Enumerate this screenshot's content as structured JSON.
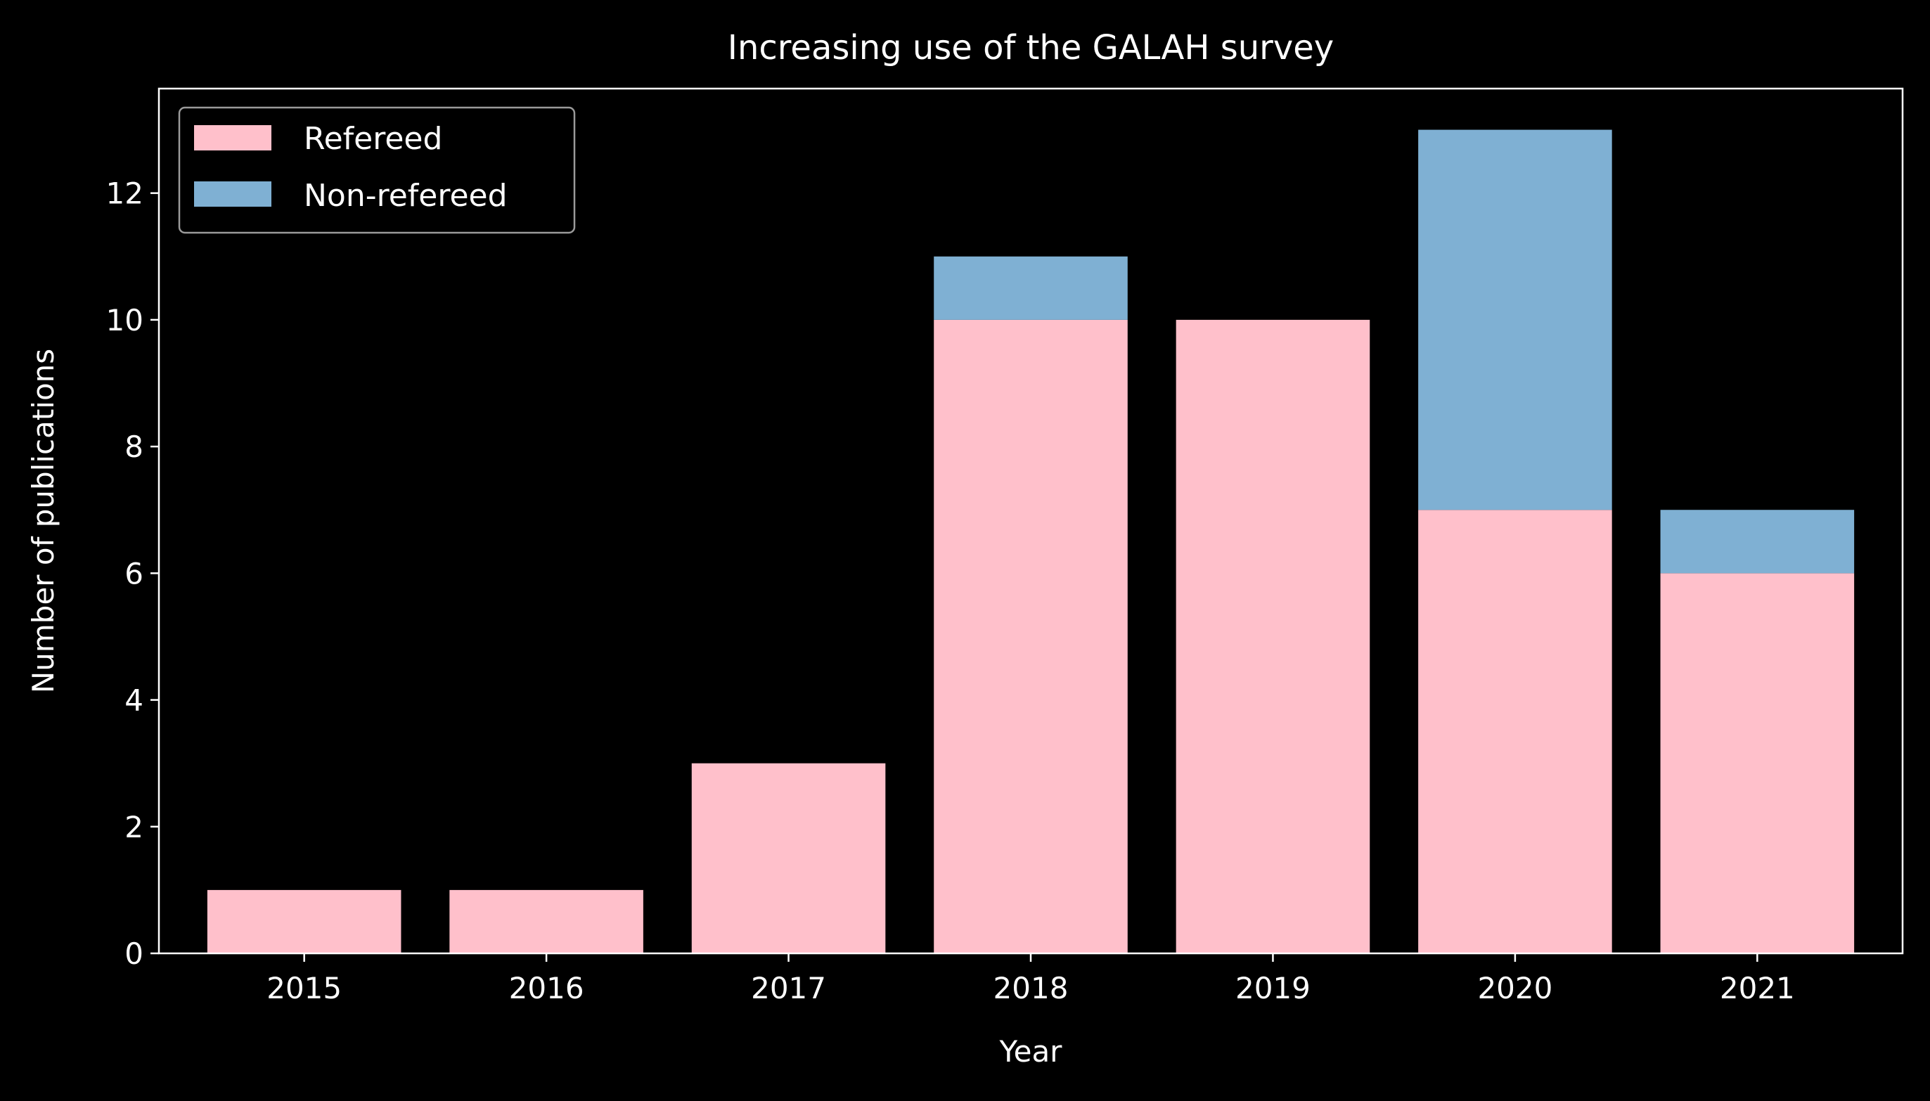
{
  "chart_data": {
    "type": "bar",
    "stacked": true,
    "title": "Increasing use of the GALAH survey",
    "xlabel": "Year",
    "ylabel": "Number of publications",
    "categories": [
      "2015",
      "2016",
      "2017",
      "2018",
      "2019",
      "2020",
      "2021"
    ],
    "series": [
      {
        "name": "Refereed",
        "color": "#ffc0cb",
        "values": [
          1,
          1,
          3,
          10,
          10,
          7,
          6
        ]
      },
      {
        "name": "Non-refereed",
        "color": "#7fb0d3",
        "values": [
          0,
          0,
          0,
          1,
          0,
          6,
          1
        ]
      }
    ],
    "ylim": [
      0,
      13.65
    ],
    "yticks": [
      0,
      2,
      4,
      6,
      8,
      10,
      12
    ],
    "legend_position": "top-left",
    "grid": false,
    "background": "#000000",
    "foreground": "#ffffff"
  }
}
